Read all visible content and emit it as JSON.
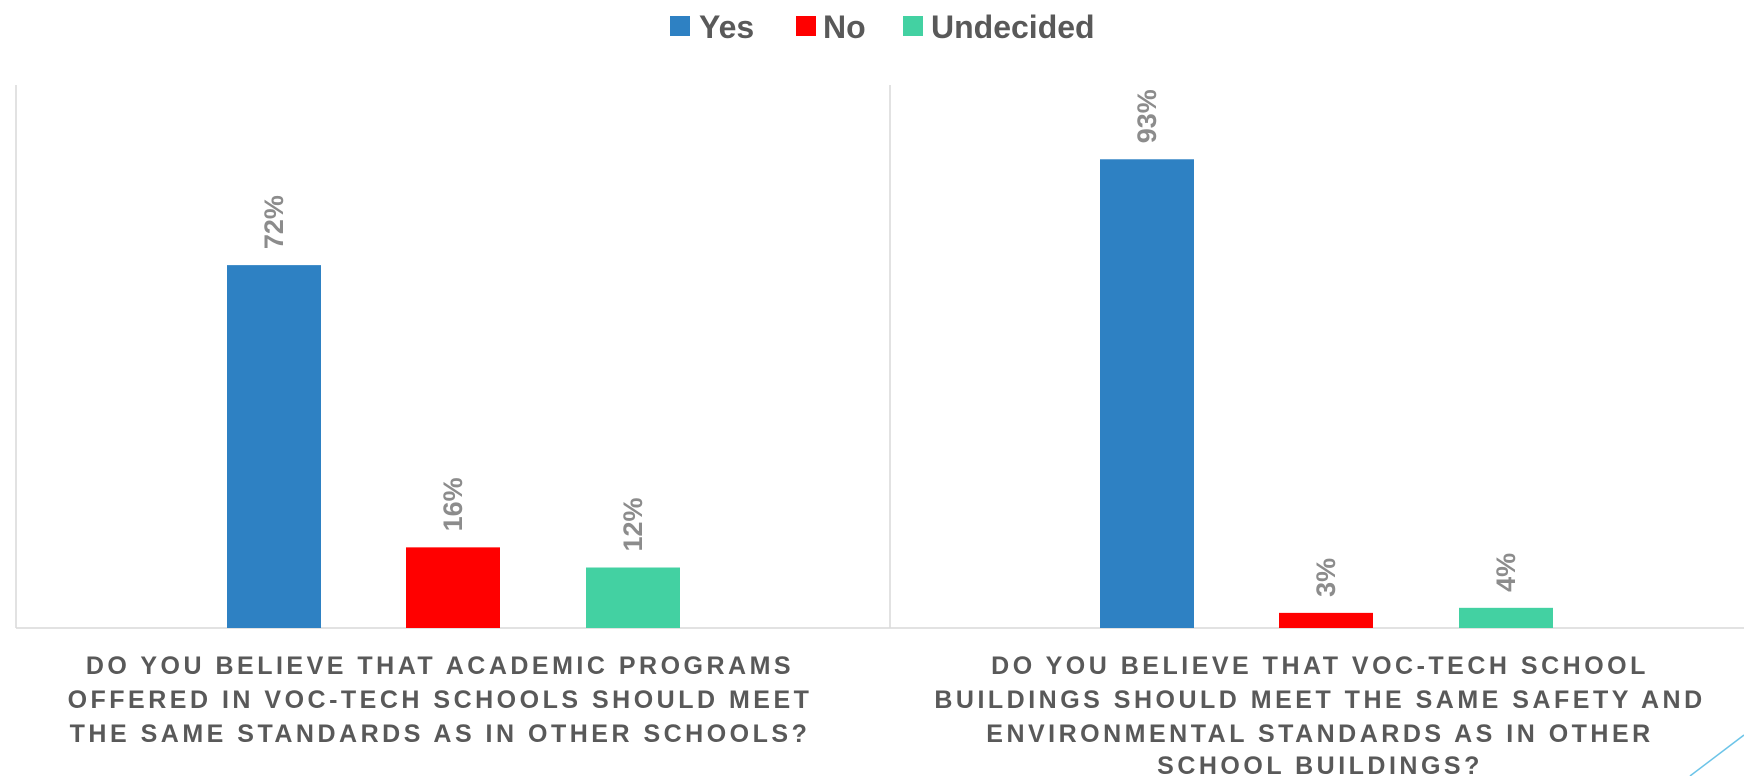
{
  "colors": {
    "yes": "#2e81c3",
    "no": "#ff0000",
    "undecided": "#43d1a2",
    "grid": "#d9d9d9",
    "accent_line": "#6cc4e8"
  },
  "chart_data": {
    "type": "bar",
    "legend_position": "top",
    "grid": false,
    "ylim": [
      0,
      100
    ],
    "series": [
      {
        "name": "Yes",
        "values": [
          72,
          93
        ],
        "labels": [
          "72%",
          "93%"
        ]
      },
      {
        "name": "No",
        "values": [
          16,
          3
        ],
        "labels": [
          "16%",
          "3%"
        ]
      },
      {
        "name": "Undecided",
        "values": [
          12,
          4
        ],
        "labels": [
          "12%",
          "4%"
        ]
      }
    ],
    "categories": [
      [
        "DO YOU BELIEVE THAT ACADEMIC PROGRAMS",
        "OFFERED IN VOC-TECH SCHOOLS SHOULD MEET",
        "THE SAME STANDARDS AS IN OTHER SCHOOLS?"
      ],
      [
        "DO YOU BELIEVE THAT VOC-TECH SCHOOL",
        "BUILDINGS SHOULD MEET THE SAME SAFETY AND",
        "ENVIRONMENTAL STANDARDS AS IN OTHER",
        "SCHOOL BUILDINGS?"
      ]
    ]
  }
}
